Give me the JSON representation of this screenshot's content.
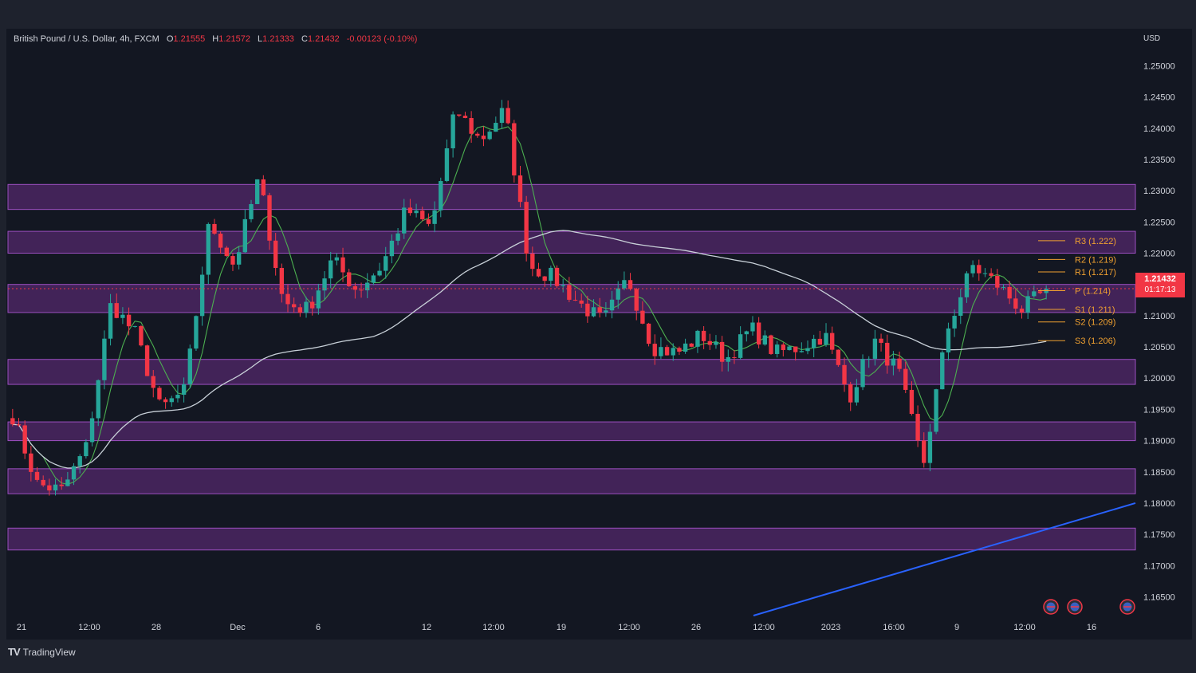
{
  "legend": {
    "symbol": "British Pound / U.S. Dollar, 4h, FXCM",
    "open_label": "O",
    "open": "1.21555",
    "high_label": "H",
    "high": "1.21572",
    "low_label": "L",
    "low": "1.21333",
    "close_label": "C",
    "close": "1.21432",
    "change": "-0.00123 (-0.10%)"
  },
  "currency": "USD",
  "last_price": {
    "price": "1.21432",
    "countdown": "01:17:13"
  },
  "branding": {
    "name": "TradingView"
  },
  "colors": {
    "up": "#26a69a",
    "down": "#f23645",
    "zone": "#6a2d85",
    "ma_fast": "#4caf50",
    "ma_slow": "#c8d0d8",
    "trendline": "#2962ff",
    "pivot": "#f0a030"
  },
  "chart_data": {
    "type": "candlestick",
    "title": "British Pound / U.S. Dollar, 4h, FXCM",
    "ylim": [
      1.162,
      1.2535
    ],
    "y_ticks": [
      "1.25000",
      "1.24500",
      "1.24000",
      "1.23500",
      "1.23000",
      "1.22500",
      "1.22000",
      "1.21500",
      "1.21000",
      "1.20500",
      "1.20000",
      "1.19500",
      "1.19000",
      "1.18500",
      "1.18000",
      "1.17500",
      "1.17000",
      "1.16500"
    ],
    "x_ticks": [
      "21",
      "12:00",
      "28",
      "Dec",
      "6",
      "12",
      "12:00",
      "19",
      "12:00",
      "26",
      "12:00",
      "2023",
      "16:00",
      "9",
      "12:00",
      "16"
    ],
    "anchors": [
      1.194,
      1.183,
      1.182,
      1.189,
      1.212,
      1.207,
      1.195,
      1.198,
      1.225,
      1.218,
      1.232,
      1.212,
      1.211,
      1.219,
      1.214,
      1.218,
      1.227,
      1.224,
      1.243,
      1.238,
      1.243,
      1.218,
      1.216,
      1.212,
      1.209,
      1.216,
      1.205,
      1.204,
      1.207,
      1.203,
      1.208,
      1.204,
      1.205,
      1.207,
      1.197,
      1.206,
      1.201,
      1.186,
      1.208,
      1.218,
      1.215,
      1.211,
      1.214
    ],
    "zones": [
      [
        1.227,
        1.231
      ],
      [
        1.22,
        1.2235
      ],
      [
        1.2105,
        1.215
      ],
      [
        1.199,
        1.203
      ],
      [
        1.19,
        1.193
      ],
      [
        1.1815,
        1.1855
      ],
      [
        1.1725,
        1.176
      ]
    ],
    "pivots": [
      {
        "label": "R3 (1.222)",
        "value": 1.222
      },
      {
        "label": "R2 (1.219)",
        "value": 1.219
      },
      {
        "label": "R1 (1.217)",
        "value": 1.217
      },
      {
        "label": "P (1.214)",
        "value": 1.214
      },
      {
        "label": "S1 (1.211)",
        "value": 1.211
      },
      {
        "label": "S2 (1.209)",
        "value": 1.209
      },
      {
        "label": "S3 (1.206)",
        "value": 1.206
      }
    ],
    "trendline": [
      [
        1.162,
        1.18
      ]
    ]
  }
}
